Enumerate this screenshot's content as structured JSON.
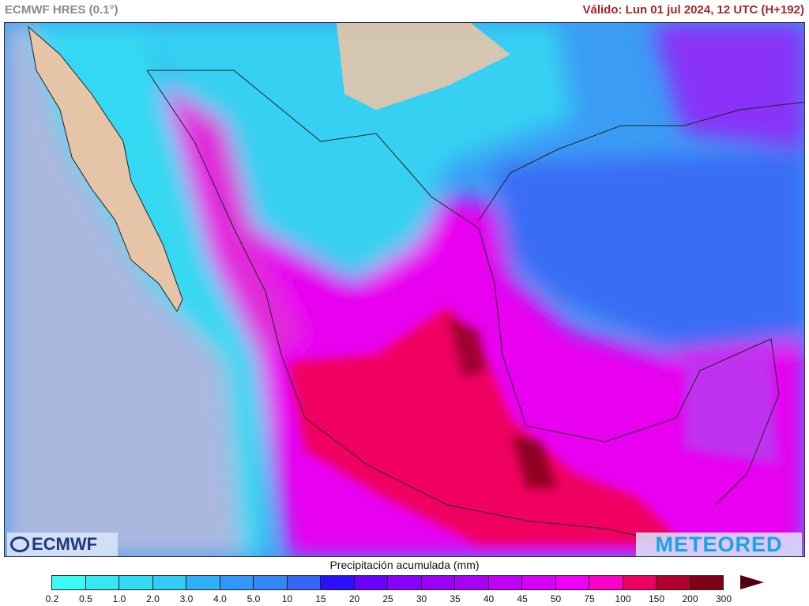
{
  "header": {
    "model": "ECMWF HRES (0.1°)",
    "valid": "Válido: Lun 01 jul 2024, 12 UTC (H+192)"
  },
  "map": {
    "variable": "Precipitación acumulada",
    "region": "Mexico",
    "colors": {
      "ocean_dry": "#aab8df",
      "land_dry": "#e6c4a8",
      "light": "#36e0f2",
      "moderate": "#3388f8",
      "heavy": "#f000f8",
      "very_heavy": "#f00060",
      "extreme": "#800018"
    }
  },
  "logos": {
    "left": "ECMWF",
    "right": "METEORED"
  },
  "colorbar": {
    "title": "Precipitación acumulada (mm)",
    "ticks": [
      "0.2",
      "0.5",
      "1.0",
      "2.0",
      "3.0",
      "4.0",
      "5.0",
      "10",
      "15",
      "20",
      "25",
      "30",
      "35",
      "40",
      "45",
      "50",
      "75",
      "100",
      "150",
      "200",
      "300"
    ],
    "colors": [
      "#3afcf5",
      "#36e8f2",
      "#33d8f2",
      "#30ccf5",
      "#30b0f8",
      "#3098fa",
      "#3388f8",
      "#3366f5",
      "#2a10ff",
      "#6a00ff",
      "#8800ff",
      "#9900f8",
      "#aa00f5",
      "#c000f8",
      "#d800f8",
      "#f000f8",
      "#ff00c8",
      "#f00060",
      "#b00030",
      "#800018"
    ],
    "overflow_color": "#500008"
  }
}
